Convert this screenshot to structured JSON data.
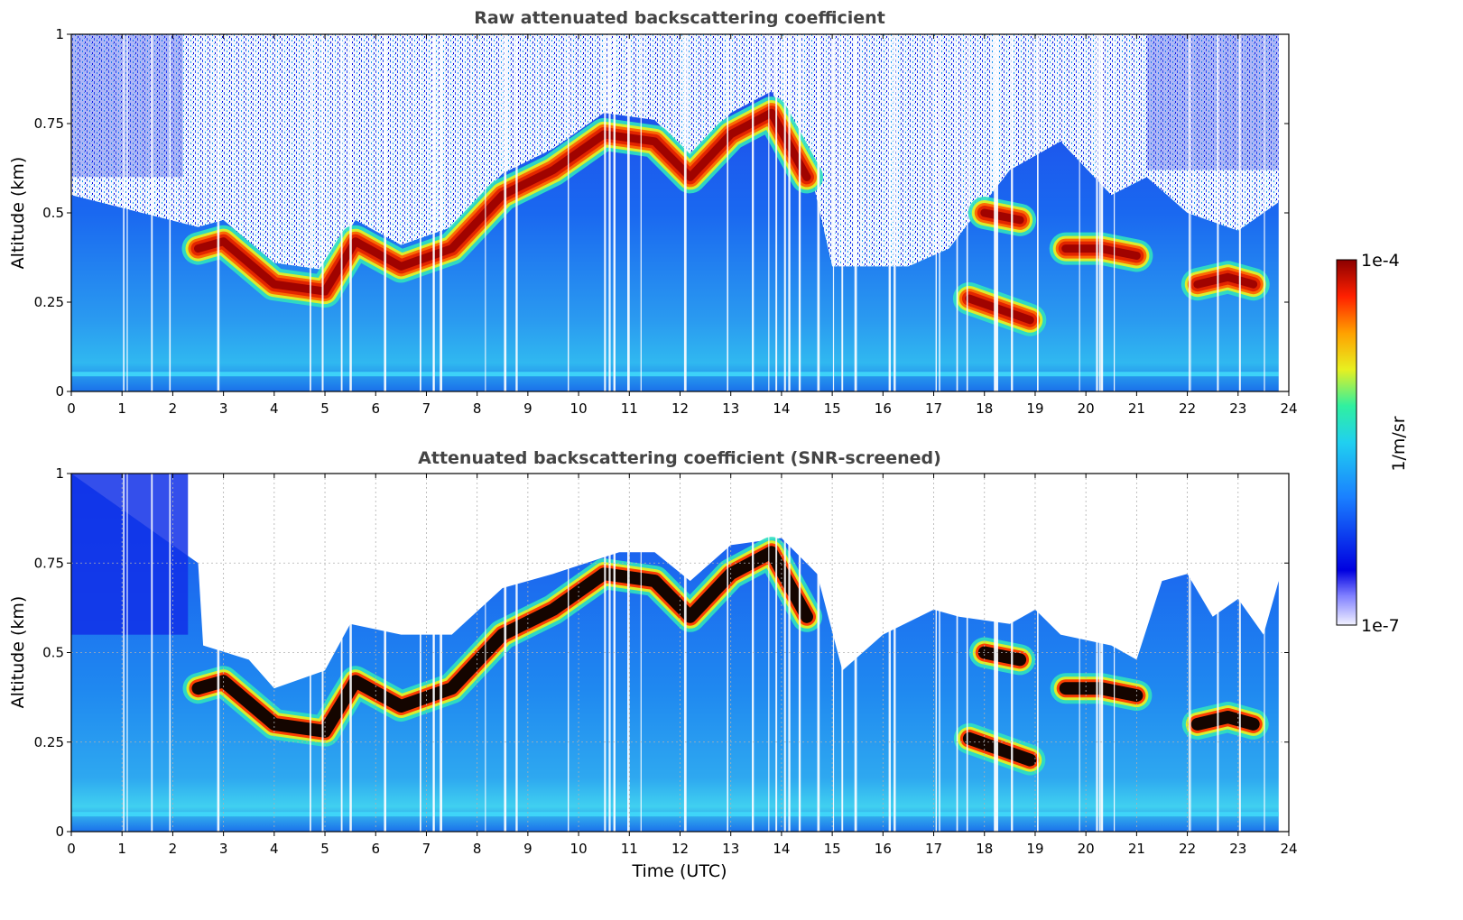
{
  "chart_data": [
    {
      "type": "heatmap",
      "title": "Raw attenuated backscattering coefficient",
      "xlabel": "",
      "ylabel": "Altitude (km)",
      "xlim": [
        0,
        24
      ],
      "ylim": [
        0,
        1
      ],
      "x_ticks": [
        "0",
        "1",
        "2",
        "3",
        "4",
        "5",
        "6",
        "7",
        "8",
        "9",
        "10",
        "11",
        "12",
        "13",
        "14",
        "15",
        "16",
        "17",
        "18",
        "19",
        "20",
        "21",
        "22",
        "23",
        "24"
      ],
      "y_ticks": [
        "0",
        "0.25",
        "0.5",
        "0.75",
        "1"
      ],
      "grid": false,
      "color_scale": "log",
      "clim": [
        "1e-7",
        "1e-4"
      ],
      "layer_altitude_km": {
        "x": [
          2.5,
          3.0,
          4.0,
          5.0,
          5.6,
          6.5,
          7.5,
          8.5,
          9.5,
          10.5,
          11.5,
          12.2,
          13.0,
          13.8,
          14.5
        ],
        "y": [
          0.4,
          0.42,
          0.3,
          0.28,
          0.42,
          0.35,
          0.4,
          0.55,
          0.62,
          0.72,
          0.7,
          0.6,
          0.72,
          0.78,
          0.6
        ]
      },
      "secondary_layers": [
        {
          "x": [
            18.0,
            18.7
          ],
          "y": [
            0.5,
            0.48
          ]
        },
        {
          "x": [
            17.7,
            18.5,
            18.9
          ],
          "y": [
            0.26,
            0.22,
            0.2
          ]
        },
        {
          "x": [
            19.6,
            20.3,
            21.0
          ],
          "y": [
            0.4,
            0.4,
            0.38
          ]
        },
        {
          "x": [
            22.2,
            22.8,
            23.3
          ],
          "y": [
            0.3,
            0.32,
            0.3
          ]
        }
      ]
    },
    {
      "type": "heatmap",
      "title": "Attenuated backscattering coefficient (SNR-screened)",
      "xlabel": "Time (UTC)",
      "ylabel": "Altitude (km)",
      "xlim": [
        0,
        24
      ],
      "ylim": [
        0,
        1
      ],
      "x_ticks": [
        "0",
        "1",
        "2",
        "3",
        "4",
        "5",
        "6",
        "7",
        "8",
        "9",
        "10",
        "11",
        "12",
        "13",
        "14",
        "15",
        "16",
        "17",
        "18",
        "19",
        "20",
        "21",
        "22",
        "23",
        "24"
      ],
      "y_ticks": [
        "0",
        "0.25",
        "0.5",
        "0.75",
        "1"
      ],
      "grid": true,
      "color_scale": "log",
      "clim": [
        "1e-7",
        "1e-4"
      ],
      "screened_top_km": {
        "x": [
          0,
          2.5,
          2.6,
          3.5,
          4.0,
          5.0,
          5.5,
          6.5,
          7.5,
          8.5,
          9.5,
          10.8,
          11.5,
          12.2,
          13.0,
          14.0,
          14.7,
          15.2,
          16.0,
          17.0,
          17.5,
          18.5,
          19.0,
          19.5,
          20.5,
          21.0,
          21.5,
          22.0,
          22.5,
          23.0,
          23.5,
          23.8
        ],
        "y": [
          1.0,
          0.75,
          0.52,
          0.48,
          0.4,
          0.45,
          0.58,
          0.55,
          0.55,
          0.68,
          0.72,
          0.78,
          0.78,
          0.7,
          0.8,
          0.82,
          0.72,
          0.45,
          0.55,
          0.62,
          0.6,
          0.58,
          0.62,
          0.55,
          0.52,
          0.48,
          0.7,
          0.72,
          0.6,
          0.65,
          0.55,
          0.7
        ]
      }
    }
  ],
  "colorbar": {
    "label": "1/m/sr",
    "max_label": "1e-4",
    "min_label": "1e-7"
  },
  "colors": {
    "palette": [
      "#ffffff",
      "#0000d8",
      "#1a80ff",
      "#40c8f0",
      "#2df0b0",
      "#e8f020",
      "#ffa000",
      "#ff2000",
      "#8b0000"
    ],
    "saturated_black": "#000000",
    "title_gray": "#444444"
  }
}
